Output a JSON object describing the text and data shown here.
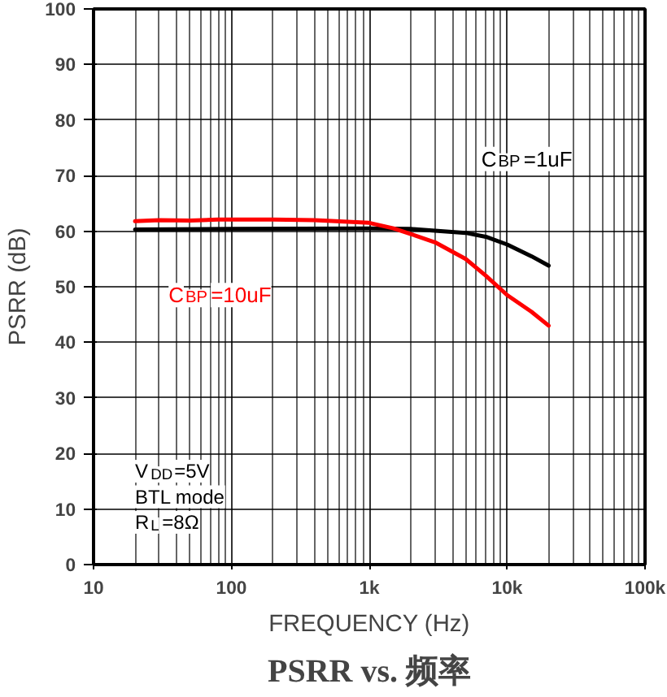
{
  "chart_data": {
    "type": "line",
    "title": "PSRR vs. 频率",
    "xlabel": "FREQUENCY (Hz)",
    "ylabel": "PSRR (dB)",
    "log": "x",
    "grid": true,
    "marker": "none",
    "line_style": "solid",
    "xlim": [
      10,
      100000
    ],
    "xticks": [
      10,
      100,
      {
        "value": 1000,
        "label": "1k"
      },
      {
        "value": 10000,
        "label": "10k"
      },
      {
        "value": 100000,
        "label": "100k"
      }
    ],
    "ylim": [
      0,
      100
    ],
    "yticks": [
      0,
      10,
      20,
      30,
      40,
      50,
      60,
      70,
      80,
      90,
      100
    ],
    "annotations": [
      "V$_{DD}$=5V",
      "BTL mode",
      "R$_{L}$=8Ω"
    ],
    "series": [
      {
        "name": "C$_{BP}$=1uF",
        "color": "#000000",
        "x": [
          20,
          100,
          1000,
          2000,
          3000,
          5000,
          7000,
          10000,
          15000,
          20000
        ],
        "values": [
          60.3,
          60.4,
          60.5,
          60.4,
          60.1,
          59.7,
          59.0,
          57.6,
          55.5,
          53.8
        ]
      },
      {
        "name": "C$_{BP}$=10uF",
        "color": "#ff0000",
        "x": [
          20,
          30,
          50,
          80,
          200,
          400,
          700,
          1000,
          1500,
          2000,
          3000,
          5000,
          7000,
          10000,
          15000,
          20000
        ],
        "values": [
          61.8,
          62.0,
          61.9,
          62.1,
          62.1,
          62.0,
          61.7,
          61.5,
          60.5,
          59.5,
          58.0,
          55.0,
          52.0,
          48.5,
          45.5,
          43.0
        ]
      }
    ]
  }
}
